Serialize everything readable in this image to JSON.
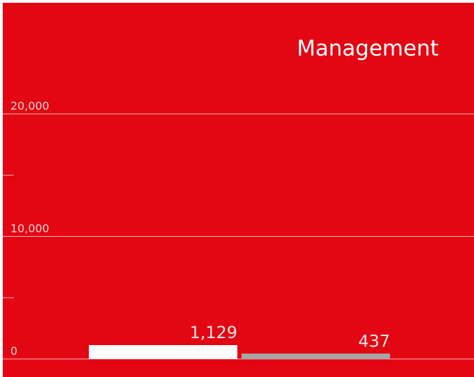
{
  "chart_data": {
    "type": "bar",
    "title": "Management",
    "categories": [
      null,
      null
    ],
    "values": [
      1129,
      437
    ],
    "value_labels": [
      "1,129",
      "437"
    ],
    "colors": [
      "#ffffff",
      "#a6a6a6"
    ],
    "ylim": [
      0,
      20000
    ],
    "yticks": [
      0,
      {
        "value": 10000,
        "label": "10,000"
      },
      {
        "value": 20000,
        "label": "20,000"
      }
    ],
    "minor_yticks": [
      5000,
      15000
    ],
    "grid": true
  }
}
